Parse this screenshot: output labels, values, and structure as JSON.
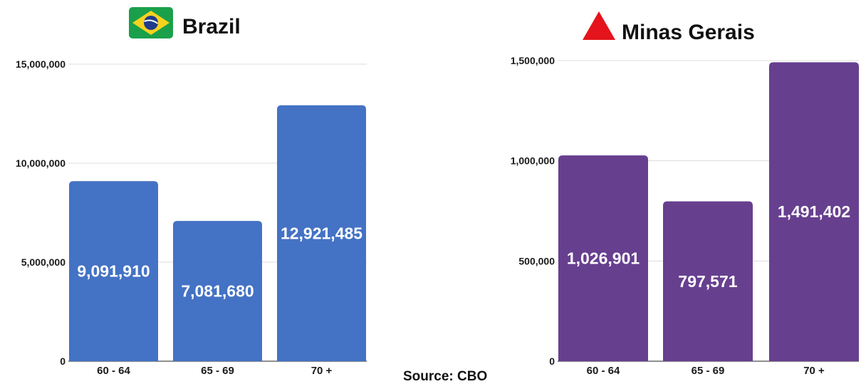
{
  "source": "Source: CBO",
  "chart_data": [
    {
      "type": "bar",
      "title": "Brazil",
      "title_icon": "brazil-flag-icon",
      "categories": [
        "60 - 64",
        "65 - 69",
        "70 +"
      ],
      "values": [
        9091910,
        7081680,
        12921485
      ],
      "data_labels": [
        "9,091,910",
        "7,081,680",
        "12,921,485"
      ],
      "ylim": [
        0,
        15000000
      ],
      "y_ticks": [
        0,
        5000000,
        10000000,
        15000000
      ],
      "y_tick_labels": [
        "0",
        "5,000,000",
        "10,000,000",
        "15,000,000"
      ],
      "xlabel": "",
      "ylabel": "",
      "bar_color": "#4472c4",
      "grid": true
    },
    {
      "type": "bar",
      "title": "Minas Gerais",
      "title_icon": "red-triangle-icon",
      "categories": [
        "60 - 64",
        "65 - 69",
        "70 +"
      ],
      "values": [
        1026901,
        797571,
        1491402
      ],
      "data_labels": [
        "1,026,901",
        "797,571",
        "1,491,402"
      ],
      "ylim": [
        0,
        1500000
      ],
      "y_ticks": [
        0,
        500000,
        1000000,
        1500000
      ],
      "y_tick_labels": [
        "0",
        "500,000",
        "1,000,000",
        "1,500,000"
      ],
      "xlabel": "",
      "ylabel": "",
      "bar_color": "#673f8f",
      "grid": true
    }
  ],
  "colors": {
    "flag_green": "#1aa04a",
    "flag_yellow": "#f6d21e",
    "flag_blue": "#1f3b8c",
    "triangle_red": "#e5141c"
  }
}
